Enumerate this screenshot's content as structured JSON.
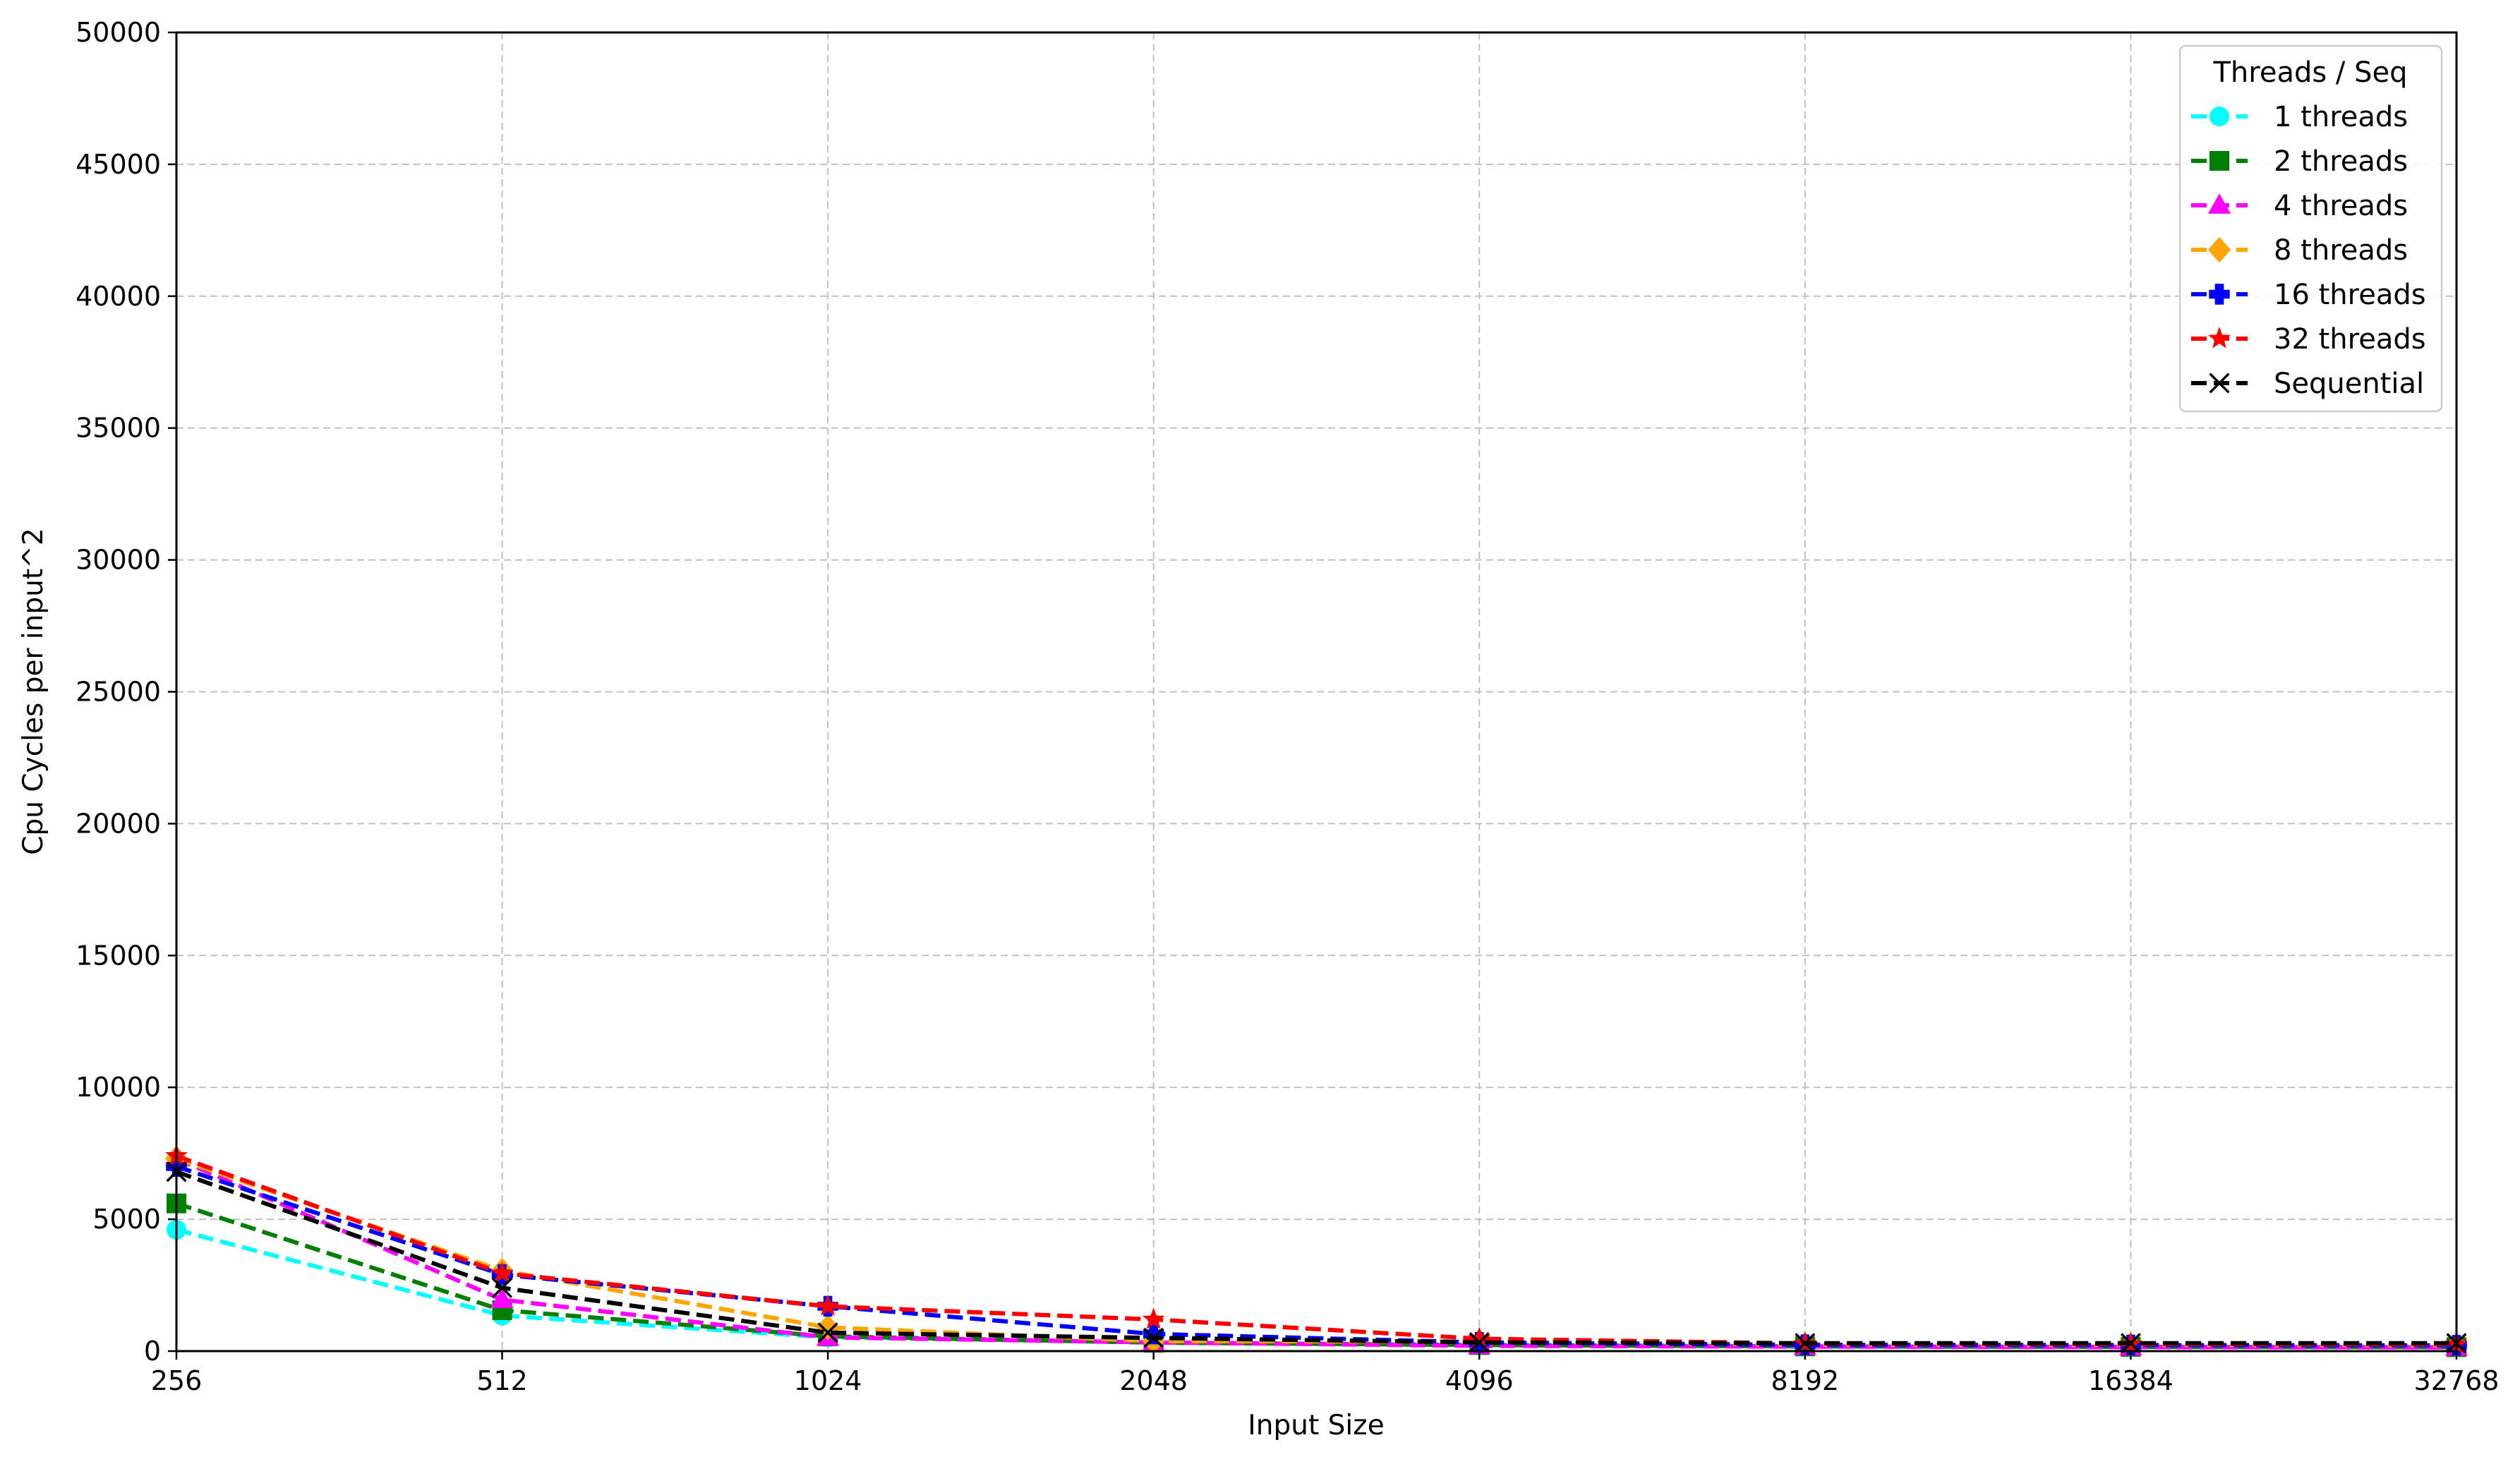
{
  "chart_data": {
    "type": "line",
    "title": "",
    "xlabel": "Input Size",
    "ylabel": "Cpu Cycles per input^2",
    "x": [
      256,
      512,
      1024,
      2048,
      4096,
      8192,
      16384,
      32768
    ],
    "x_scale": "log2",
    "x_ticks": [
      "256",
      "512",
      "1024",
      "2048",
      "4096",
      "8192",
      "16384",
      "32768"
    ],
    "ylim": [
      0,
      50000
    ],
    "y_ticks": [
      "0",
      "5000",
      "10000",
      "15000",
      "20000",
      "25000",
      "30000",
      "35000",
      "40000",
      "45000",
      "50000"
    ],
    "grid": true,
    "legend": {
      "title": "Threads / Seq",
      "placement": "top-right"
    },
    "series": [
      {
        "name": "1 threads",
        "color": "#00ffff",
        "marker": "circle",
        "values": [
          4600,
          1350,
          520,
          330,
          230,
          180,
          160,
          150
        ]
      },
      {
        "name": "2 threads",
        "color": "#008000",
        "marker": "square",
        "values": [
          5600,
          1550,
          560,
          320,
          230,
          180,
          160,
          150
        ]
      },
      {
        "name": "4 threads",
        "color": "#ff00ff",
        "marker": "triangle",
        "values": [
          7300,
          1950,
          520,
          330,
          200,
          170,
          150,
          140
        ]
      },
      {
        "name": "8 threads",
        "color": "#ffa500",
        "marker": "diamond",
        "values": [
          7300,
          3050,
          900,
          380,
          360,
          240,
          230,
          220
        ]
      },
      {
        "name": "16 threads",
        "color": "#0000ff",
        "marker": "plus-filled",
        "values": [
          7000,
          2900,
          1700,
          650,
          330,
          240,
          230,
          220
        ]
      },
      {
        "name": "32 threads",
        "color": "#ff0000",
        "marker": "star",
        "values": [
          7400,
          2950,
          1700,
          1200,
          470,
          290,
          270,
          260
        ]
      },
      {
        "name": "Sequential",
        "color": "#000000",
        "marker": "x",
        "values": [
          6800,
          2400,
          700,
          500,
          330,
          300,
          300,
          300
        ]
      }
    ]
  }
}
